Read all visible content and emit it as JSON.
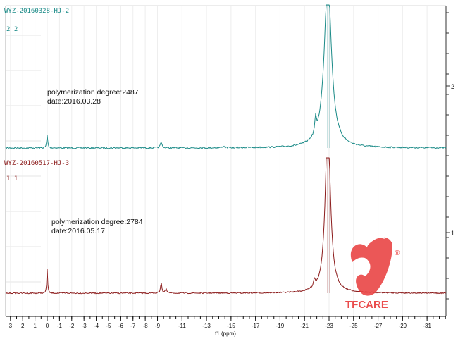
{
  "chart_data": {
    "type": "line",
    "xlabel": "f1 (ppm)",
    "x_ticks": [
      3,
      2,
      1,
      0,
      -1,
      -2,
      -3,
      -4,
      -5,
      -6,
      -7,
      -8,
      -9,
      -11,
      -13,
      -15,
      -17,
      -19,
      -21,
      -23,
      -25,
      -27,
      -29,
      -31
    ],
    "xlim": [
      3.6,
      -33.0
    ],
    "spectra": [
      {
        "id": "top",
        "sample": "WYZ-20160328-HJ-2",
        "label_line": "2 2",
        "axis_tick_label": "2",
        "annotation": [
          "polymerization degree:2487",
          "date:2016.03.28"
        ],
        "color": "#1a8a87",
        "peaks": [
          {
            "ppm": -22.9,
            "height": 1.2,
            "width": 0.35
          },
          {
            "ppm": -21.9,
            "height": 0.11,
            "width": 0.08
          },
          {
            "ppm": 0.0,
            "height": 0.09,
            "width": 0.05
          },
          {
            "ppm": -9.3,
            "height": 0.04,
            "width": 0.08
          },
          {
            "ppm": -14.4,
            "height": 0.01,
            "width": 0.1
          }
        ]
      },
      {
        "id": "bottom",
        "sample": "WYZ-20160517-HJ-3",
        "label_line": "1 1",
        "axis_tick_label": "1",
        "annotation": [
          "polymerization degree:2784",
          "date:2016.05.17"
        ],
        "color": "#8b1a1a",
        "peaks": [
          {
            "ppm": -22.9,
            "height": 1.4,
            "width": 0.25
          },
          {
            "ppm": -21.8,
            "height": 0.06,
            "width": 0.08
          },
          {
            "ppm": 0.0,
            "height": 0.2,
            "width": 0.04
          },
          {
            "ppm": -9.3,
            "height": 0.09,
            "width": 0.06
          },
          {
            "ppm": -9.7,
            "height": 0.03,
            "width": 0.08
          }
        ]
      }
    ]
  },
  "watermark": {
    "text": "TFCARE",
    "mark": "®",
    "color": "#e83a3a"
  }
}
